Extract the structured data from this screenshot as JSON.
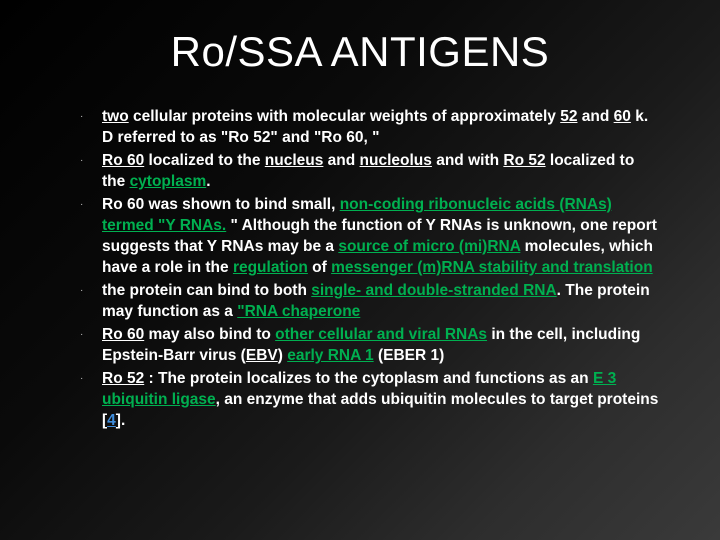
{
  "slide": {
    "title": "Ro/SSA ANTIGENS",
    "background_gradient": [
      "#000000",
      "#3a3a3a"
    ],
    "text_color": "#ffffff",
    "accent_green": "#00b050",
    "link_color": "#3e8ddd",
    "title_fontsize": 42,
    "body_fontsize": 15.5,
    "bullets": [
      {
        "segments": [
          {
            "t": "two",
            "u": true
          },
          {
            "t": " cellular proteins with molecular weights of approximately "
          },
          {
            "t": "52",
            "u": true
          },
          {
            "t": " and "
          },
          {
            "t": "60",
            "u": true
          },
          {
            "t": " k. D referred to as \"Ro 52\" and \"Ro 60, \""
          }
        ]
      },
      {
        "segments": [
          {
            "t": "Ro 60",
            "u": true
          },
          {
            "t": " localized to the "
          },
          {
            "t": "nucleus",
            "u": true
          },
          {
            "t": " and "
          },
          {
            "t": "nucleolus",
            "u": true
          },
          {
            "t": " and with "
          },
          {
            "t": "Ro 52",
            "u": true
          },
          {
            "t": " localized to the "
          },
          {
            "t": "cytoplasm",
            "u": true,
            "g": true
          },
          {
            "t": "."
          }
        ]
      },
      {
        "segments": [
          {
            "t": "Ro 60 was shown to bind small, "
          },
          {
            "t": "non-coding ribonucleic acids (RNAs) termed \"Y RNAs.",
            "u": true,
            "g": true
          },
          {
            "t": " \" Although the function of Y RNAs is unknown, one report suggests that Y RNAs may be a "
          },
          {
            "t": "source of micro (mi)RNA",
            "u": true,
            "g": true
          },
          {
            "t": " molecules, which have a role in the "
          },
          {
            "t": "regulation",
            "u": true,
            "g": true
          },
          {
            "t": " of "
          },
          {
            "t": "messenger (m)RNA stability and translation",
            "u": true,
            "g": true
          }
        ]
      },
      {
        "segments": [
          {
            "t": "the protein can bind to both "
          },
          {
            "t": "single- and double-stranded RNA",
            "u": true,
            "g": true
          },
          {
            "t": ". The protein may function as a "
          },
          {
            "t": "\"RNA chaperone",
            "u": true,
            "g": true
          }
        ]
      },
      {
        "segments": [
          {
            "t": "Ro 60",
            "u": true
          },
          {
            "t": " may also bind to "
          },
          {
            "t": "other cellular and viral RNAs",
            "u": true,
            "g": true
          },
          {
            "t": " in the cell, including Epstein-Barr virus ("
          },
          {
            "t": "EBV",
            "u": true
          },
          {
            "t": ") "
          },
          {
            "t": "early RNA 1",
            "u": true,
            "g": true
          },
          {
            "t": " (EBER 1)"
          }
        ]
      },
      {
        "segments": [
          {
            "t": "Ro 52",
            "u": true
          },
          {
            "t": " : The protein localizes to the cytoplasm and functions as an "
          },
          {
            "t": "E 3 ubiquitin ligase",
            "u": true,
            "g": true
          },
          {
            "t": ", an enzyme that adds ubiquitin molecules to target proteins ["
          },
          {
            "t": "4",
            "link": true
          },
          {
            "t": "]."
          }
        ]
      }
    ]
  }
}
